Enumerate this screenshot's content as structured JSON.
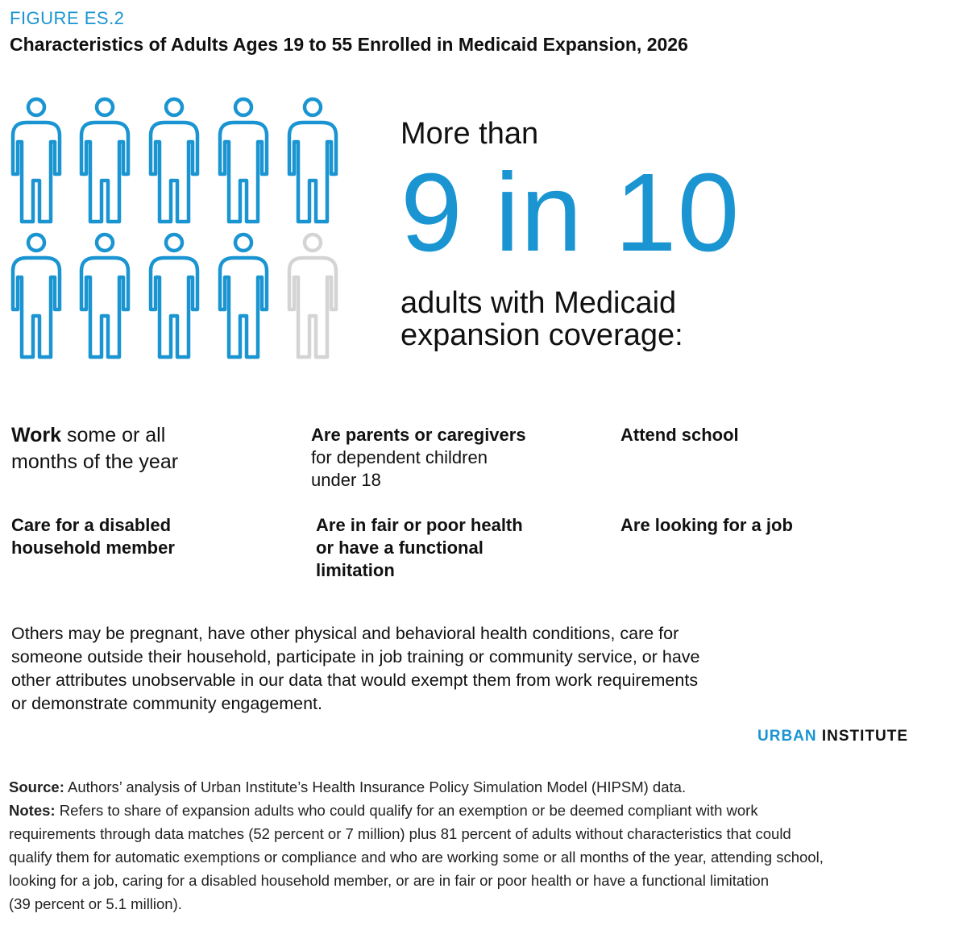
{
  "figure_label": "FIGURE ES.2",
  "title": "Characteristics of Adults Ages 19 to 55 Enrolled in Medicaid Expansion, 2026",
  "pictogram": {
    "total": 10,
    "highlighted": 9,
    "highlight_color": "#1a95d2",
    "muted_color": "#d4d4d4"
  },
  "headline": {
    "lead": "More than",
    "stat": "9 in 10",
    "sub_line1": "adults with Medicaid",
    "sub_line2": "expansion coverage:"
  },
  "characteristics": {
    "work": {
      "bold": "Work",
      "rest1": " some or all",
      "rest2": "months of the year"
    },
    "parents": {
      "bold": "Are parents or caregivers",
      "line2": "for dependent children",
      "line3": "under 18"
    },
    "school": {
      "bold": "Attend school"
    },
    "care": {
      "line1": "Care for a disabled",
      "line2": "household member"
    },
    "health": {
      "line1": "Are in fair or poor health",
      "line2": "or have a functional",
      "line3": "limitation"
    },
    "job": {
      "bold": "Are looking for a job"
    }
  },
  "others": {
    "line1": "Others may be pregnant, have other physical and behavioral health conditions, care for",
    "line2": "someone outside their household, participate in job training or community service, or have",
    "line3": "other attributes unobservable in our data that would exempt them from work requirements",
    "line4": "or demonstrate community engagement."
  },
  "brand": {
    "part1": "URBAN",
    "part2": " INSTITUTE",
    "color": "#1a95d2"
  },
  "source": {
    "label": "Source:",
    "text": " Authors’ analysis of Urban Institute’s Health Insurance Policy Simulation Model (HIPSM) data."
  },
  "notes": {
    "label": "Notes:",
    "line1": " Refers to share of expansion adults who could qualify for an exemption or be deemed compliant with work",
    "line2": "requirements through data matches (52 percent or 7 million) plus 81 percent of adults without characteristics that could",
    "line3": "qualify them for automatic exemptions or compliance and who are working some or all months of the year, attending school,",
    "line4": "looking for a job, caring for a disabled household member, or are in fair or poor health or have a functional limitation",
    "line5": "(39 percent or 5.1 million)."
  }
}
